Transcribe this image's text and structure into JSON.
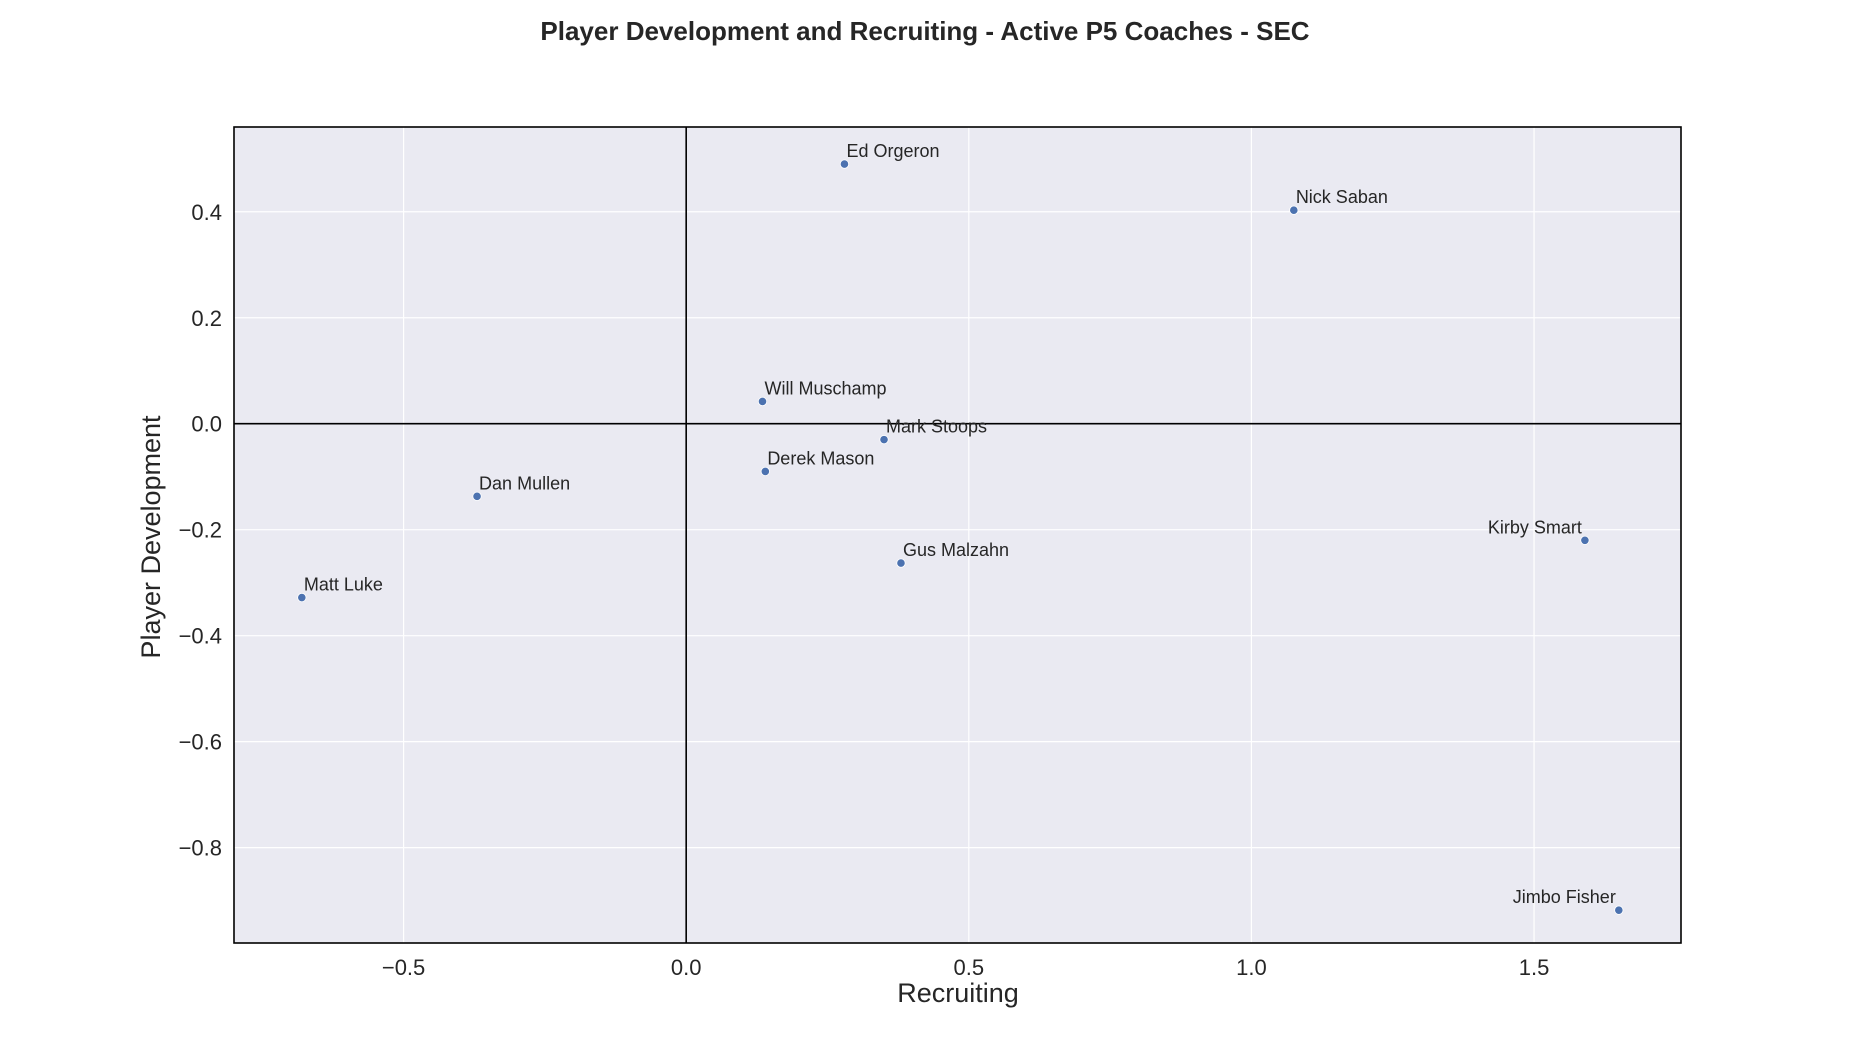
{
  "chart_data": {
    "type": "scatter",
    "title": "Player Development and Recruiting - Active P5 Coaches - SEC",
    "xlabel": "Recruiting",
    "ylabel": "Player Development",
    "xlim": [
      -0.8,
      1.76
    ],
    "ylim": [
      -0.98,
      0.56
    ],
    "xticks": [
      -0.5,
      0.0,
      0.5,
      1.0,
      1.5
    ],
    "xtick_labels": [
      "−0.5",
      "0.0",
      "0.5",
      "1.0",
      "1.5"
    ],
    "yticks": [
      0.4,
      0.2,
      0.0,
      -0.2,
      -0.4,
      -0.6,
      -0.8
    ],
    "ytick_labels": [
      "0.4",
      "0.2",
      "0.0",
      "−0.2",
      "−0.4",
      "−0.6",
      "−0.8"
    ],
    "reference_lines": {
      "x": 0,
      "y": 0
    },
    "grid": true,
    "colors": {
      "background": "#eaeaf2",
      "grid": "#ffffff",
      "point": "#4c72b0",
      "frame": "#000000",
      "text": "#262626"
    },
    "points": [
      {
        "name": "Ed Orgeron",
        "x": 0.28,
        "y": 0.49,
        "label_pos": "right"
      },
      {
        "name": "Nick Saban",
        "x": 1.075,
        "y": 0.403,
        "label_pos": "right"
      },
      {
        "name": "Will Muschamp",
        "x": 0.135,
        "y": 0.042,
        "label_pos": "right"
      },
      {
        "name": "Mark Stoops",
        "x": 0.35,
        "y": -0.03,
        "label_pos": "right"
      },
      {
        "name": "Derek Mason",
        "x": 0.14,
        "y": -0.09,
        "label_pos": "right"
      },
      {
        "name": "Dan Mullen",
        "x": -0.37,
        "y": -0.137,
        "label_pos": "right"
      },
      {
        "name": "Gus Malzahn",
        "x": 0.38,
        "y": -0.263,
        "label_pos": "right"
      },
      {
        "name": "Matt Luke",
        "x": -0.68,
        "y": -0.328,
        "label_pos": "right"
      },
      {
        "name": "Kirby Smart",
        "x": 1.59,
        "y": -0.22,
        "label_pos": "left"
      },
      {
        "name": "Jimbo Fisher",
        "x": 1.65,
        "y": -0.918,
        "label_pos": "left"
      }
    ]
  }
}
